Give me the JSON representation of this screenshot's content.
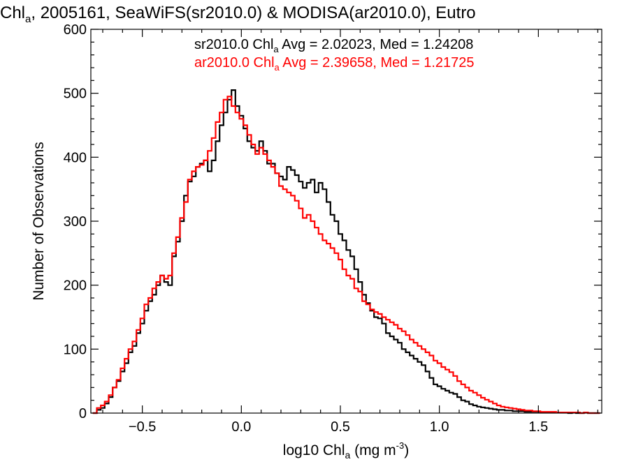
{
  "colors": {
    "sr": "#000000",
    "ar": "#ff0000"
  },
  "chart_data": {
    "type": "histogram-step",
    "title": {
      "main": "Chl",
      "sub": "a",
      "rest": ", 2005161, SeaWiFS(sr2010.0) & MODISA(ar2010.0), Eutro"
    },
    "xlabel": {
      "pre": "log10 Chl",
      "sub": "a",
      "mid": " (mg m",
      "sup": "-3",
      "post": ")"
    },
    "ylabel": "Number of Observations",
    "xlim": [
      -0.76,
      1.82
    ],
    "ylim": [
      0,
      600
    ],
    "xticks": [
      {
        "value": -0.5,
        "label": "−0.5"
      },
      {
        "value": 0.0,
        "label": "0.0"
      },
      {
        "value": 0.5,
        "label": "0.5"
      },
      {
        "value": 1.0,
        "label": "1.0"
      },
      {
        "value": 1.5,
        "label": "1.5"
      }
    ],
    "yticks": [
      {
        "value": 0,
        "label": "0"
      },
      {
        "value": 100,
        "label": "100"
      },
      {
        "value": 200,
        "label": "200"
      },
      {
        "value": 300,
        "label": "300"
      },
      {
        "value": 400,
        "label": "400"
      },
      {
        "value": 500,
        "label": "500"
      },
      {
        "value": 600,
        "label": "600"
      }
    ],
    "annotations": [
      {
        "pre": "sr2010.0 Chl",
        "sub": "a",
        "post": " Avg = 2.02023, Med = 1.24208",
        "color": "#000000"
      },
      {
        "pre": "ar2010.0 Chl",
        "sub": "a",
        "post": " Avg = 2.39658, Med = 1.21725",
        "color": "#ff0000"
      }
    ],
    "series": [
      {
        "key": "sr",
        "color": "#000000",
        "points": [
          [
            -0.74,
            0
          ],
          [
            -0.72,
            5
          ],
          [
            -0.7,
            8
          ],
          [
            -0.68,
            15
          ],
          [
            -0.66,
            25
          ],
          [
            -0.64,
            40
          ],
          [
            -0.62,
            50
          ],
          [
            -0.6,
            65
          ],
          [
            -0.58,
            78
          ],
          [
            -0.56,
            95
          ],
          [
            -0.54,
            105
          ],
          [
            -0.52,
            125
          ],
          [
            -0.5,
            140
          ],
          [
            -0.48,
            160
          ],
          [
            -0.46,
            175
          ],
          [
            -0.44,
            185
          ],
          [
            -0.42,
            200
          ],
          [
            -0.4,
            215
          ],
          [
            -0.38,
            205
          ],
          [
            -0.36,
            200
          ],
          [
            -0.34,
            245
          ],
          [
            -0.32,
            268
          ],
          [
            -0.3,
            300
          ],
          [
            -0.28,
            340
          ],
          [
            -0.26,
            362
          ],
          [
            -0.24,
            370
          ],
          [
            -0.22,
            385
          ],
          [
            -0.2,
            390
          ],
          [
            -0.18,
            395
          ],
          [
            -0.16,
            378
          ],
          [
            -0.14,
            395
          ],
          [
            -0.12,
            425
          ],
          [
            -0.1,
            450
          ],
          [
            -0.08,
            470
          ],
          [
            -0.06,
            490
          ],
          [
            -0.04,
            505
          ],
          [
            -0.02,
            480
          ],
          [
            0.0,
            465
          ],
          [
            0.02,
            445
          ],
          [
            0.04,
            425
          ],
          [
            0.06,
            415
          ],
          [
            0.08,
            410
          ],
          [
            0.1,
            425
          ],
          [
            0.12,
            410
          ],
          [
            0.14,
            390
          ],
          [
            0.16,
            390
          ],
          [
            0.18,
            375
          ],
          [
            0.2,
            370
          ],
          [
            0.22,
            365
          ],
          [
            0.24,
            385
          ],
          [
            0.26,
            380
          ],
          [
            0.28,
            372
          ],
          [
            0.3,
            362
          ],
          [
            0.32,
            352
          ],
          [
            0.34,
            360
          ],
          [
            0.36,
            365
          ],
          [
            0.38,
            345
          ],
          [
            0.4,
            360
          ],
          [
            0.42,
            350
          ],
          [
            0.44,
            330
          ],
          [
            0.46,
            310
          ],
          [
            0.48,
            300
          ],
          [
            0.5,
            280
          ],
          [
            0.52,
            270
          ],
          [
            0.54,
            255
          ],
          [
            0.56,
            245
          ],
          [
            0.58,
            225
          ],
          [
            0.6,
            205
          ],
          [
            0.62,
            185
          ],
          [
            0.64,
            172
          ],
          [
            0.66,
            160
          ],
          [
            0.68,
            150
          ],
          [
            0.7,
            148
          ],
          [
            0.72,
            140
          ],
          [
            0.74,
            125
          ],
          [
            0.76,
            120
          ],
          [
            0.78,
            115
          ],
          [
            0.8,
            110
          ],
          [
            0.82,
            100
          ],
          [
            0.84,
            95
          ],
          [
            0.86,
            90
          ],
          [
            0.88,
            85
          ],
          [
            0.9,
            80
          ],
          [
            0.92,
            75
          ],
          [
            0.94,
            65
          ],
          [
            0.96,
            55
          ],
          [
            0.98,
            45
          ],
          [
            1.0,
            42
          ],
          [
            1.02,
            38
          ],
          [
            1.04,
            35
          ],
          [
            1.06,
            32
          ],
          [
            1.08,
            30
          ],
          [
            1.1,
            25
          ],
          [
            1.12,
            20
          ],
          [
            1.14,
            18
          ],
          [
            1.16,
            14
          ],
          [
            1.18,
            12
          ],
          [
            1.2,
            10
          ],
          [
            1.22,
            9
          ],
          [
            1.24,
            8
          ],
          [
            1.26,
            7
          ],
          [
            1.28,
            6
          ],
          [
            1.3,
            5
          ],
          [
            1.32,
            5
          ],
          [
            1.34,
            4
          ],
          [
            1.36,
            4
          ],
          [
            1.38,
            3
          ],
          [
            1.4,
            3
          ],
          [
            1.42,
            3
          ],
          [
            1.44,
            2
          ],
          [
            1.46,
            2
          ],
          [
            1.48,
            2
          ],
          [
            1.5,
            2
          ],
          [
            1.52,
            1
          ],
          [
            1.54,
            1
          ],
          [
            1.56,
            1
          ],
          [
            1.58,
            1
          ],
          [
            1.6,
            1
          ],
          [
            1.62,
            1
          ],
          [
            1.64,
            1
          ],
          [
            1.66,
            0
          ],
          [
            1.68,
            1
          ],
          [
            1.7,
            0
          ],
          [
            1.72,
            0
          ],
          [
            1.74,
            1
          ],
          [
            1.76,
            0
          ],
          [
            1.78,
            0
          ],
          [
            1.8,
            0
          ]
        ]
      },
      {
        "key": "ar",
        "color": "#ff0000",
        "points": [
          [
            -0.74,
            0
          ],
          [
            -0.72,
            8
          ],
          [
            -0.7,
            12
          ],
          [
            -0.68,
            18
          ],
          [
            -0.66,
            28
          ],
          [
            -0.64,
            40
          ],
          [
            -0.62,
            52
          ],
          [
            -0.6,
            70
          ],
          [
            -0.58,
            85
          ],
          [
            -0.56,
            100
          ],
          [
            -0.54,
            112
          ],
          [
            -0.52,
            130
          ],
          [
            -0.5,
            148
          ],
          [
            -0.48,
            170
          ],
          [
            -0.46,
            180
          ],
          [
            -0.44,
            195
          ],
          [
            -0.42,
            205
          ],
          [
            -0.4,
            215
          ],
          [
            -0.38,
            210
          ],
          [
            -0.36,
            215
          ],
          [
            -0.34,
            250
          ],
          [
            -0.32,
            275
          ],
          [
            -0.3,
            305
          ],
          [
            -0.28,
            330
          ],
          [
            -0.26,
            365
          ],
          [
            -0.24,
            378
          ],
          [
            -0.22,
            385
          ],
          [
            -0.2,
            388
          ],
          [
            -0.18,
            395
          ],
          [
            -0.16,
            410
          ],
          [
            -0.14,
            430
          ],
          [
            -0.12,
            455
          ],
          [
            -0.1,
            470
          ],
          [
            -0.08,
            490
          ],
          [
            -0.06,
            495
          ],
          [
            -0.04,
            480
          ],
          [
            -0.02,
            470
          ],
          [
            0.0,
            460
          ],
          [
            0.02,
            450
          ],
          [
            0.04,
            435
          ],
          [
            0.06,
            420
          ],
          [
            0.08,
            405
          ],
          [
            0.1,
            415
          ],
          [
            0.12,
            405
          ],
          [
            0.14,
            395
          ],
          [
            0.16,
            385
          ],
          [
            0.18,
            375
          ],
          [
            0.2,
            355
          ],
          [
            0.22,
            350
          ],
          [
            0.24,
            345
          ],
          [
            0.26,
            340
          ],
          [
            0.28,
            332
          ],
          [
            0.3,
            320
          ],
          [
            0.32,
            305
          ],
          [
            0.34,
            310
          ],
          [
            0.36,
            300
          ],
          [
            0.38,
            290
          ],
          [
            0.4,
            280
          ],
          [
            0.42,
            270
          ],
          [
            0.44,
            265
          ],
          [
            0.46,
            258
          ],
          [
            0.48,
            250
          ],
          [
            0.5,
            240
          ],
          [
            0.52,
            225
          ],
          [
            0.54,
            215
          ],
          [
            0.56,
            210
          ],
          [
            0.58,
            195
          ],
          [
            0.6,
            190
          ],
          [
            0.62,
            175
          ],
          [
            0.64,
            170
          ],
          [
            0.66,
            162
          ],
          [
            0.68,
            158
          ],
          [
            0.7,
            155
          ],
          [
            0.72,
            150
          ],
          [
            0.74,
            146
          ],
          [
            0.76,
            142
          ],
          [
            0.78,
            138
          ],
          [
            0.8,
            132
          ],
          [
            0.82,
            128
          ],
          [
            0.84,
            122
          ],
          [
            0.86,
            115
          ],
          [
            0.88,
            110
          ],
          [
            0.9,
            105
          ],
          [
            0.92,
            100
          ],
          [
            0.94,
            95
          ],
          [
            0.96,
            90
          ],
          [
            0.98,
            82
          ],
          [
            1.0,
            78
          ],
          [
            1.02,
            72
          ],
          [
            1.04,
            68
          ],
          [
            1.06,
            64
          ],
          [
            1.08,
            58
          ],
          [
            1.1,
            50
          ],
          [
            1.12,
            45
          ],
          [
            1.14,
            40
          ],
          [
            1.16,
            35
          ],
          [
            1.18,
            32
          ],
          [
            1.2,
            28
          ],
          [
            1.22,
            24
          ],
          [
            1.24,
            21
          ],
          [
            1.26,
            18
          ],
          [
            1.28,
            15
          ],
          [
            1.3,
            12
          ],
          [
            1.32,
            10
          ],
          [
            1.34,
            9
          ],
          [
            1.36,
            8
          ],
          [
            1.38,
            7
          ],
          [
            1.4,
            6
          ],
          [
            1.42,
            5
          ],
          [
            1.44,
            4
          ],
          [
            1.46,
            4
          ],
          [
            1.48,
            3
          ],
          [
            1.5,
            3
          ],
          [
            1.52,
            2
          ],
          [
            1.54,
            2
          ],
          [
            1.56,
            2
          ],
          [
            1.58,
            2
          ],
          [
            1.6,
            1
          ],
          [
            1.62,
            1
          ],
          [
            1.64,
            1
          ],
          [
            1.66,
            1
          ],
          [
            1.68,
            1
          ],
          [
            1.7,
            1
          ],
          [
            1.72,
            0
          ],
          [
            1.74,
            1
          ],
          [
            1.76,
            0
          ],
          [
            1.78,
            0
          ],
          [
            1.8,
            0
          ]
        ]
      }
    ]
  }
}
